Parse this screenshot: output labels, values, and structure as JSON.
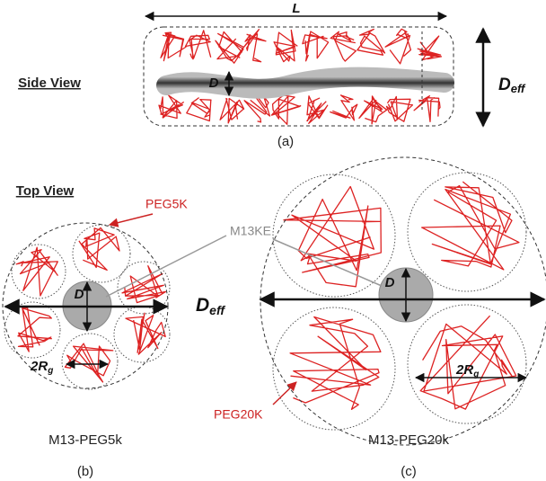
{
  "side_view": {
    "label": "Side View",
    "length_label": "L",
    "diameter_label": "D",
    "deff_label": {
      "base": "D",
      "sub": "eff"
    },
    "caption": "(a)"
  },
  "top_view": {
    "label": "Top View",
    "core_label": "M13KE",
    "left": {
      "peg_label": "PEG5K",
      "diameter_label": "D",
      "deff_label": {
        "base": "D",
        "sub": "eff"
      },
      "rg_label": {
        "base": "2R",
        "sub": "g"
      },
      "name": "M13-PEG5k",
      "caption": "(b)"
    },
    "right": {
      "peg_label": "PEG20K",
      "diameter_label": "D",
      "rg_label": {
        "base": "2R",
        "sub": "g"
      },
      "name": "M13-PEG20k",
      "caption": "(c)"
    }
  }
}
